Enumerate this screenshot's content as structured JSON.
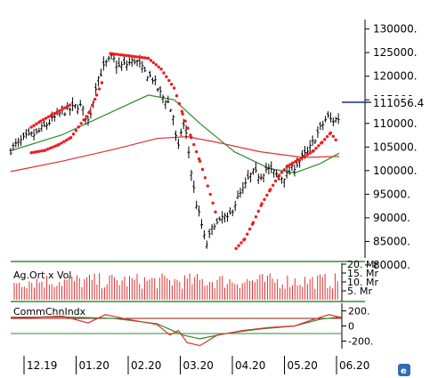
{
  "chart_data": [
    {
      "type": "candlestick",
      "ylim": [
        81500,
        132000
      ],
      "yticks": [
        "130000.",
        "125000.",
        "120000.",
        "115000.",
        "110000.",
        "105000.",
        "100000.",
        "95000.",
        "90000.",
        "85000.",
        "80000."
      ],
      "last_value": 111056.4,
      "last_value_label": "111056.4",
      "close_path": [
        [
          0,
          104500
        ],
        [
          10,
          106000
        ],
        [
          20,
          107200
        ],
        [
          30,
          107800
        ],
        [
          40,
          109500
        ],
        [
          50,
          111000
        ],
        [
          60,
          112500
        ],
        [
          70,
          113000
        ],
        [
          80,
          114000
        ],
        [
          90,
          110500
        ],
        [
          95,
          113800
        ],
        [
          100,
          119000
        ],
        [
          110,
          122500
        ],
        [
          118,
          124000
        ],
        [
          125,
          122000
        ],
        [
          135,
          122500
        ],
        [
          145,
          123500
        ],
        [
          155,
          121000
        ],
        [
          165,
          119500
        ],
        [
          175,
          116000
        ],
        [
          183,
          114500
        ],
        [
          190,
          111000
        ],
        [
          194,
          103000
        ],
        [
          197,
          108000
        ],
        [
          202,
          110000
        ],
        [
          207,
          104000
        ],
        [
          212,
          97000
        ],
        [
          217,
          92000
        ],
        [
          222,
          88500
        ],
        [
          227,
          84000
        ],
        [
          232,
          86500
        ],
        [
          237,
          89000
        ],
        [
          242,
          88500
        ],
        [
          247,
          90500
        ],
        [
          252,
          89500
        ],
        [
          257,
          91500
        ],
        [
          262,
          93500
        ],
        [
          267,
          95000
        ],
        [
          272,
          96500
        ],
        [
          277,
          98500
        ],
        [
          282,
          99500
        ],
        [
          290,
          99000
        ],
        [
          298,
          100500
        ],
        [
          306,
          99500
        ],
        [
          314,
          98500
        ],
        [
          322,
          99000
        ],
        [
          330,
          101000
        ],
        [
          338,
          102500
        ],
        [
          346,
          104000
        ],
        [
          354,
          107000
        ],
        [
          362,
          109500
        ],
        [
          368,
          111500
        ],
        [
          374,
          110500
        ],
        [
          380,
          111056
        ]
      ],
      "sar_upper": [
        [
          24,
          109200
        ],
        [
          35,
          110500
        ],
        [
          48,
          111800
        ],
        [
          60,
          113000
        ],
        [
          70,
          114000
        ],
        [
          116,
          124800
        ],
        [
          138,
          124300
        ],
        [
          160,
          123800
        ],
        [
          175,
          121500
        ],
        [
          190,
          117500
        ],
        [
          200,
          112000
        ],
        [
          210,
          107000
        ],
        [
          220,
          102000
        ],
        [
          232,
          95000
        ],
        [
          240,
          90000
        ]
      ],
      "sar_lower": [
        [
          24,
          103800
        ],
        [
          40,
          104300
        ],
        [
          56,
          105500
        ],
        [
          70,
          107000
        ],
        [
          92,
          112500
        ],
        [
          100,
          116000
        ],
        [
          108,
          119500
        ],
        [
          262,
          83500
        ],
        [
          272,
          85500
        ],
        [
          282,
          89000
        ],
        [
          292,
          93000
        ],
        [
          302,
          96000
        ],
        [
          312,
          99000
        ],
        [
          322,
          101000
        ],
        [
          332,
          102000
        ],
        [
          342,
          103000
        ],
        [
          352,
          104200
        ],
        [
          362,
          106000
        ],
        [
          372,
          108000
        ],
        [
          380,
          106000
        ]
      ],
      "ma_green": [
        [
          0,
          104200
        ],
        [
          60,
          107600
        ],
        [
          110,
          111800
        ],
        [
          160,
          116000
        ],
        [
          190,
          115000
        ],
        [
          220,
          110000
        ],
        [
          260,
          104000
        ],
        [
          300,
          100500
        ],
        [
          330,
          99500
        ],
        [
          360,
          101500
        ],
        [
          382,
          103700
        ]
      ],
      "ma_red": [
        [
          0,
          99800
        ],
        [
          60,
          102000
        ],
        [
          120,
          104500
        ],
        [
          170,
          106800
        ],
        [
          205,
          107200
        ],
        [
          240,
          106000
        ],
        [
          290,
          104000
        ],
        [
          340,
          102800
        ],
        [
          382,
          103000
        ]
      ]
    },
    {
      "type": "bar",
      "title": "Ag.Ort x Vol",
      "ylim": [
        0,
        20
      ],
      "yticks": [
        "20. Mr",
        "15. Mr",
        "10. Mr",
        "5. Mr"
      ],
      "bars": 130,
      "value_low": 6,
      "value_high": 15,
      "color": "#e03030"
    },
    {
      "type": "line",
      "title": "CommChnIndx",
      "ylim": [
        -300,
        300
      ],
      "yticks": [
        "200.",
        "0",
        "-200."
      ],
      "upper_level": 100,
      "lower_level": -100,
      "cci": [
        [
          0,
          110
        ],
        [
          30,
          115
        ],
        [
          60,
          130
        ],
        [
          90,
          40
        ],
        [
          110,
          150
        ],
        [
          140,
          80
        ],
        [
          170,
          20
        ],
        [
          185,
          -120
        ],
        [
          195,
          -60
        ],
        [
          205,
          -220
        ],
        [
          220,
          -260
        ],
        [
          240,
          -120
        ],
        [
          270,
          -60
        ],
        [
          300,
          -20
        ],
        [
          330,
          0
        ],
        [
          350,
          80
        ],
        [
          370,
          150
        ],
        [
          385,
          110
        ]
      ],
      "signal": [
        [
          0,
          115
        ],
        [
          60,
          120
        ],
        [
          120,
          100
        ],
        [
          170,
          30
        ],
        [
          200,
          -120
        ],
        [
          220,
          -170
        ],
        [
          250,
          -100
        ],
        [
          290,
          -40
        ],
        [
          330,
          0
        ],
        [
          360,
          90
        ],
        [
          385,
          120
        ]
      ]
    },
    {
      "type": "axis",
      "categories": [
        "12.19",
        "01.20",
        "02.20",
        "03.20",
        "04.20",
        "05.20",
        "06.20"
      ]
    }
  ]
}
